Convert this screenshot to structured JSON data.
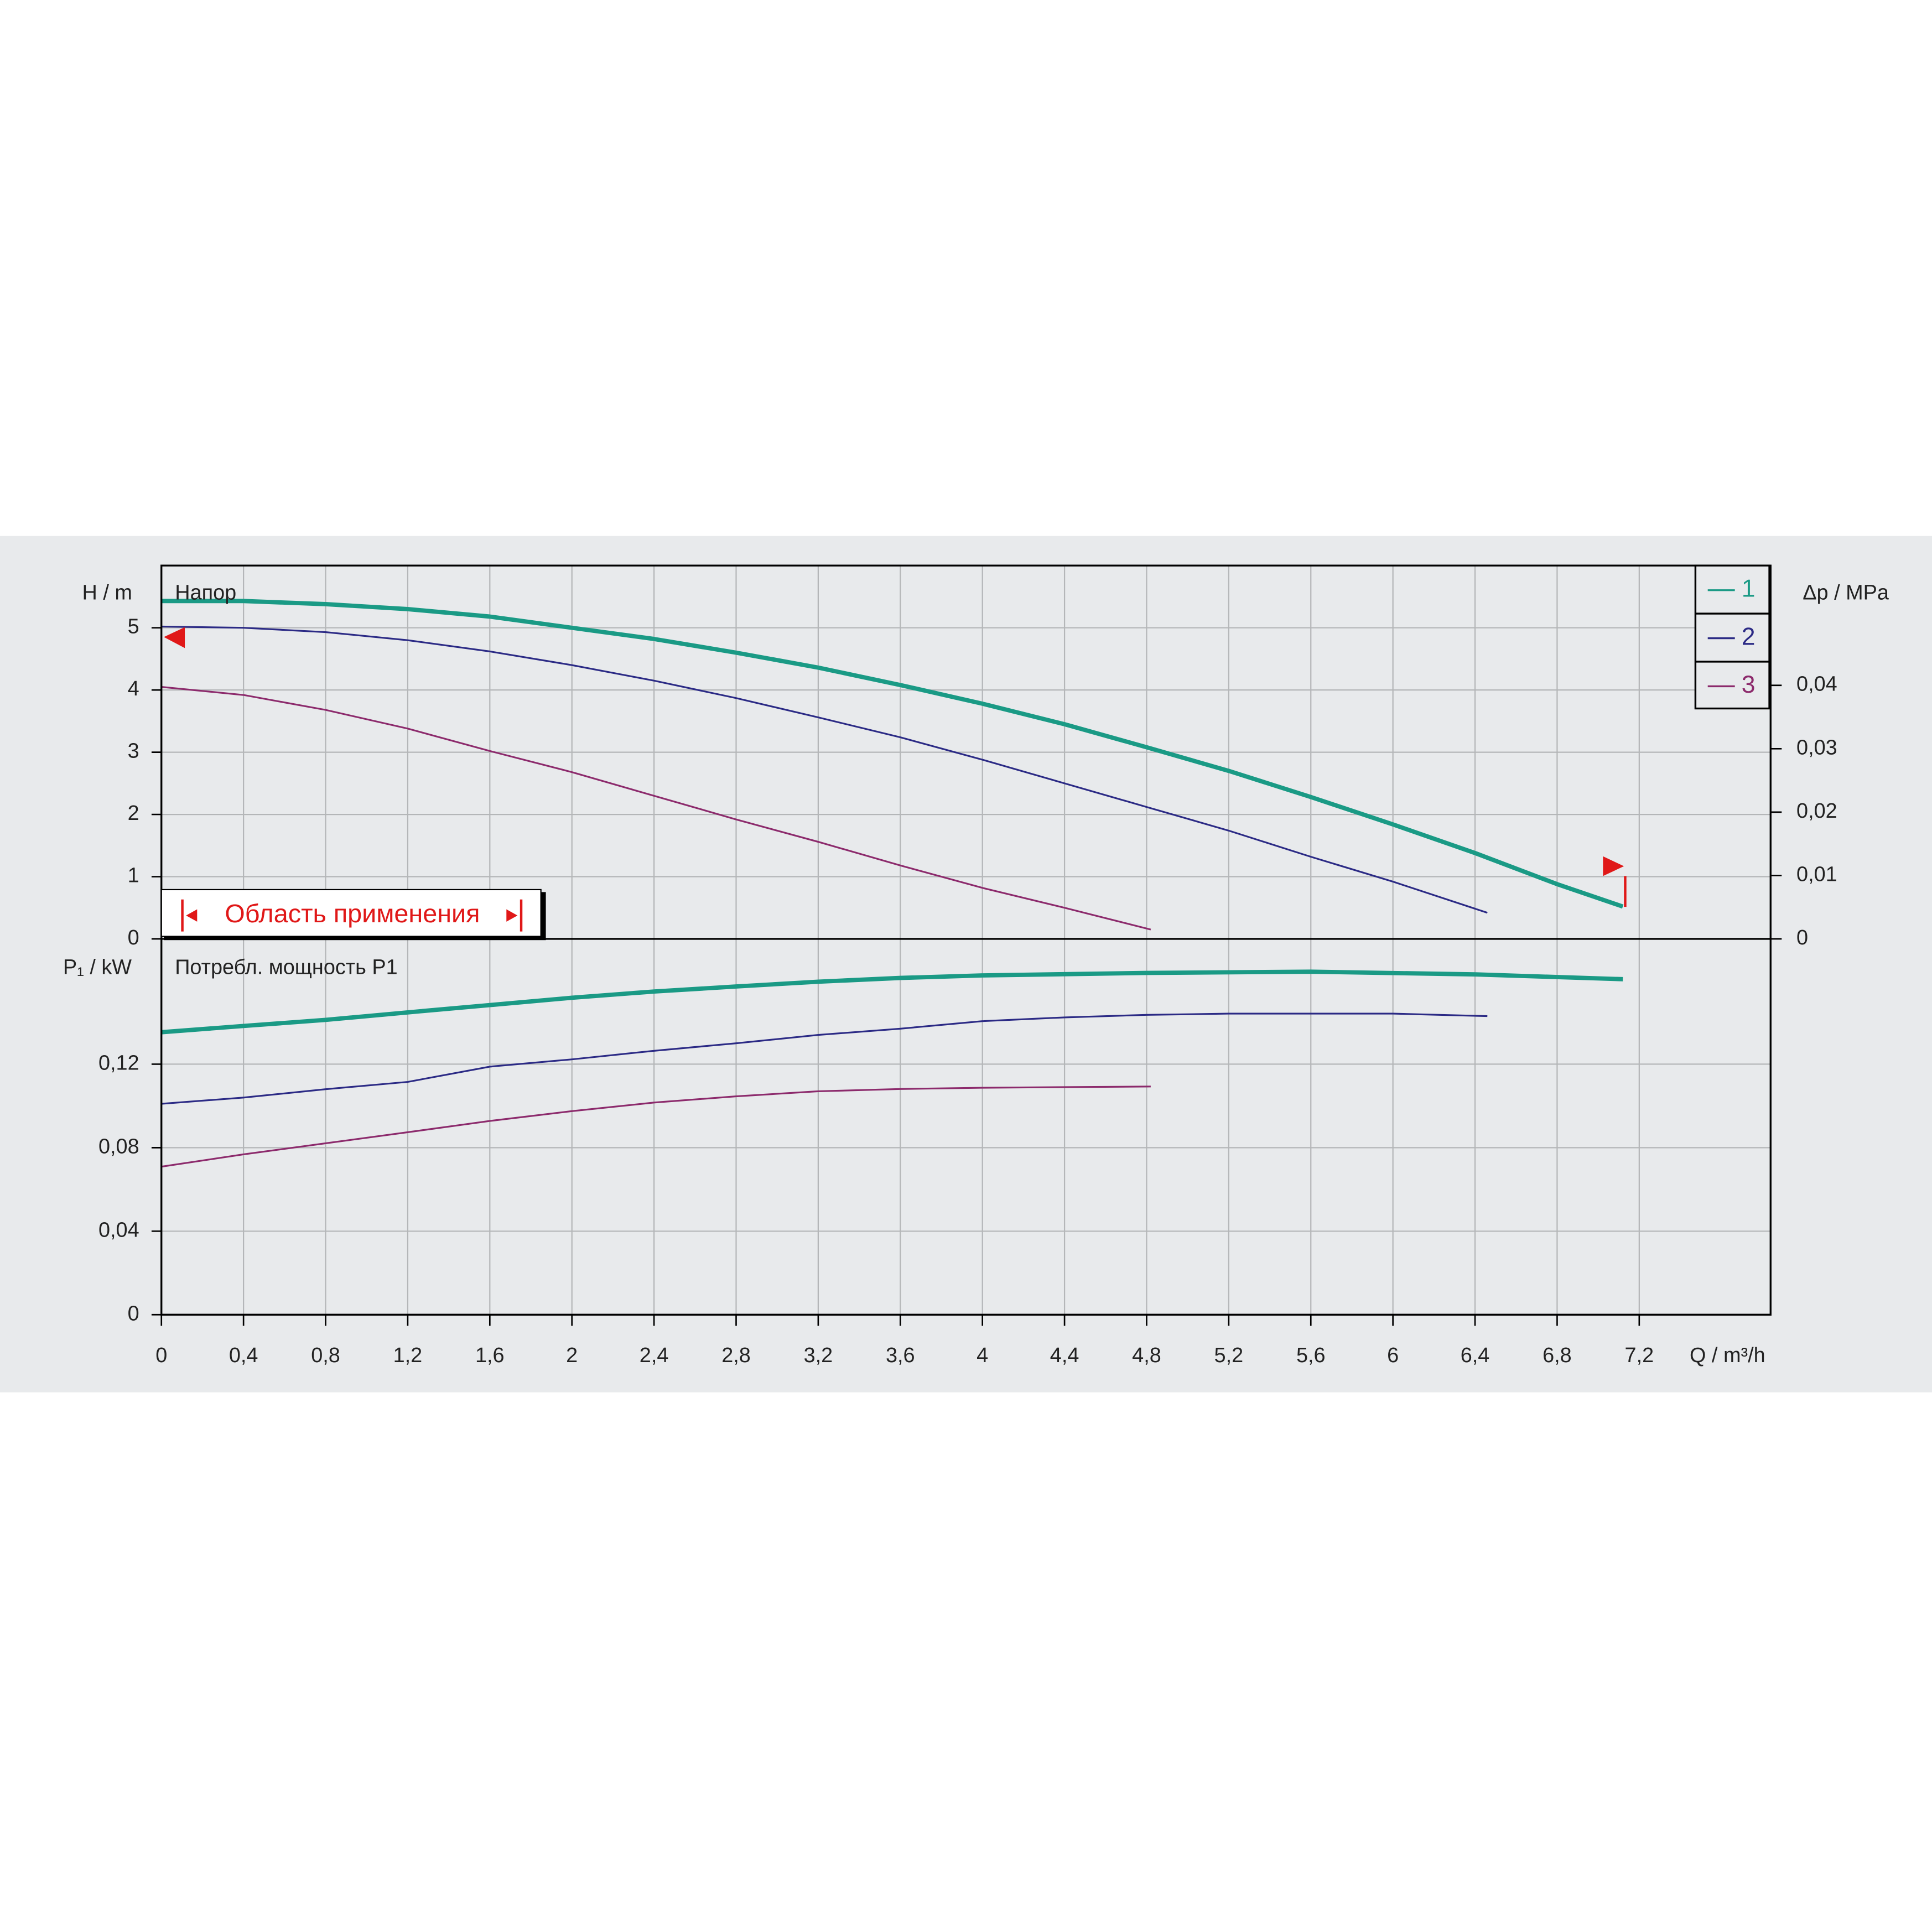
{
  "chart_data": [
    {
      "type": "line",
      "ylabel": "H / m",
      "annotation": "Напор",
      "y2label": "Δp / MPa",
      "range_label": "Область применения",
      "xlim": [
        0,
        7.84
      ],
      "ylim": [
        0,
        6
      ],
      "yticks": [
        0,
        1,
        2,
        3,
        4,
        5
      ],
      "y2lim": [
        0,
        0.0589
      ],
      "y2ticks": [
        0,
        {
          "value": 0.01,
          "label": "0,01"
        },
        {
          "value": 0.02,
          "label": "0,02"
        },
        {
          "value": 0.03,
          "label": "0,03"
        },
        {
          "value": 0.04,
          "label": "0,04"
        }
      ],
      "grid": true,
      "legend": "upper right",
      "series": [
        {
          "name": "1",
          "color": "#1a9a85",
          "x": [
            0,
            0.4,
            0.8,
            1.2,
            1.6,
            2.0,
            2.4,
            2.8,
            3.2,
            3.6,
            4.0,
            4.4,
            4.8,
            5.2,
            5.6,
            6.0,
            6.4,
            6.8,
            7.12
          ],
          "values": [
            5.43,
            5.43,
            5.38,
            5.3,
            5.18,
            5.0,
            4.82,
            4.6,
            4.36,
            4.08,
            3.78,
            3.45,
            3.08,
            2.7,
            2.28,
            1.84,
            1.38,
            0.88,
            0.52
          ]
        },
        {
          "name": "2",
          "color": "#2b2a85",
          "x": [
            0,
            0.4,
            0.8,
            1.2,
            1.6,
            2.0,
            2.4,
            2.8,
            3.2,
            3.6,
            4.0,
            4.4,
            4.8,
            5.2,
            5.6,
            6.0,
            6.46
          ],
          "values": [
            5.02,
            5.0,
            4.93,
            4.8,
            4.62,
            4.4,
            4.15,
            3.87,
            3.56,
            3.24,
            2.88,
            2.5,
            2.12,
            1.74,
            1.32,
            0.92,
            0.42
          ]
        },
        {
          "name": "3",
          "color": "#8c2a6c",
          "x": [
            0,
            0.4,
            0.8,
            1.2,
            1.6,
            2.0,
            2.4,
            2.8,
            3.2,
            3.6,
            4.0,
            4.4,
            4.82
          ],
          "values": [
            4.05,
            3.92,
            3.68,
            3.38,
            3.02,
            2.68,
            2.3,
            1.92,
            1.56,
            1.18,
            0.82,
            0.5,
            0.15
          ]
        }
      ]
    },
    {
      "type": "line",
      "ylabel": "P₁ / kW",
      "annotation": "Потребл. мощность P1",
      "xlabel": "Q / m³/h",
      "xlim": [
        0,
        7.84
      ],
      "xticks": [
        0,
        {
          "value": 0.4,
          "label": "0,4"
        },
        {
          "value": 0.8,
          "label": "0,8"
        },
        {
          "value": 1.2,
          "label": "1,2"
        },
        {
          "value": 1.6,
          "label": "1,6"
        },
        2,
        {
          "value": 2.4,
          "label": "2,4"
        },
        {
          "value": 2.8,
          "label": "2,8"
        },
        {
          "value": 3.2,
          "label": "3,2"
        },
        {
          "value": 3.6,
          "label": "3,6"
        },
        4,
        {
          "value": 4.4,
          "label": "4,4"
        },
        {
          "value": 4.8,
          "label": "4,8"
        },
        {
          "value": 5.2,
          "label": "5,2"
        },
        {
          "value": 5.6,
          "label": "5,6"
        },
        6,
        {
          "value": 6.4,
          "label": "6,4"
        },
        {
          "value": 6.8,
          "label": "6,8"
        },
        {
          "value": 7.2,
          "label": "7,2"
        }
      ],
      "ylim": [
        0,
        0.18
      ],
      "yticks": [
        0,
        {
          "value": 0.04,
          "label": "0,04"
        },
        {
          "value": 0.08,
          "label": "0,08"
        },
        {
          "value": 0.12,
          "label": "0,12"
        }
      ],
      "grid": true,
      "series": [
        {
          "color": "#1a9a85",
          "x": [
            0,
            0.4,
            0.8,
            1.2,
            1.6,
            2.0,
            2.4,
            2.8,
            3.2,
            3.6,
            4.0,
            4.8,
            5.6,
            6.4,
            7.12
          ],
          "values": [
            0.1353,
            0.1383,
            0.1412,
            0.1448,
            0.1483,
            0.1518,
            0.1548,
            0.1572,
            0.1595,
            0.1613,
            0.1625,
            0.1637,
            0.1643,
            0.163,
            0.1607
          ]
        },
        {
          "color": "#2b2a85",
          "x": [
            0,
            0.4,
            0.8,
            1.2,
            1.6,
            2.0,
            2.4,
            2.8,
            3.2,
            3.6,
            4.0,
            4.4,
            4.8,
            5.2,
            6.0,
            6.46
          ],
          "values": [
            0.101,
            0.104,
            0.108,
            0.1115,
            0.1188,
            0.1223,
            0.1264,
            0.13,
            0.134,
            0.137,
            0.1406,
            0.1424,
            0.1436,
            0.1442,
            0.1442,
            0.143
          ]
        },
        {
          "color": "#8c2a6c",
          "x": [
            0,
            0.4,
            0.8,
            1.2,
            1.6,
            2.0,
            2.4,
            2.8,
            3.2,
            3.6,
            4.0,
            4.82
          ],
          "values": [
            0.0709,
            0.0768,
            0.0821,
            0.0874,
            0.0928,
            0.0975,
            0.1016,
            0.1046,
            0.107,
            0.1081,
            0.1087,
            0.1093
          ]
        }
      ]
    }
  ]
}
